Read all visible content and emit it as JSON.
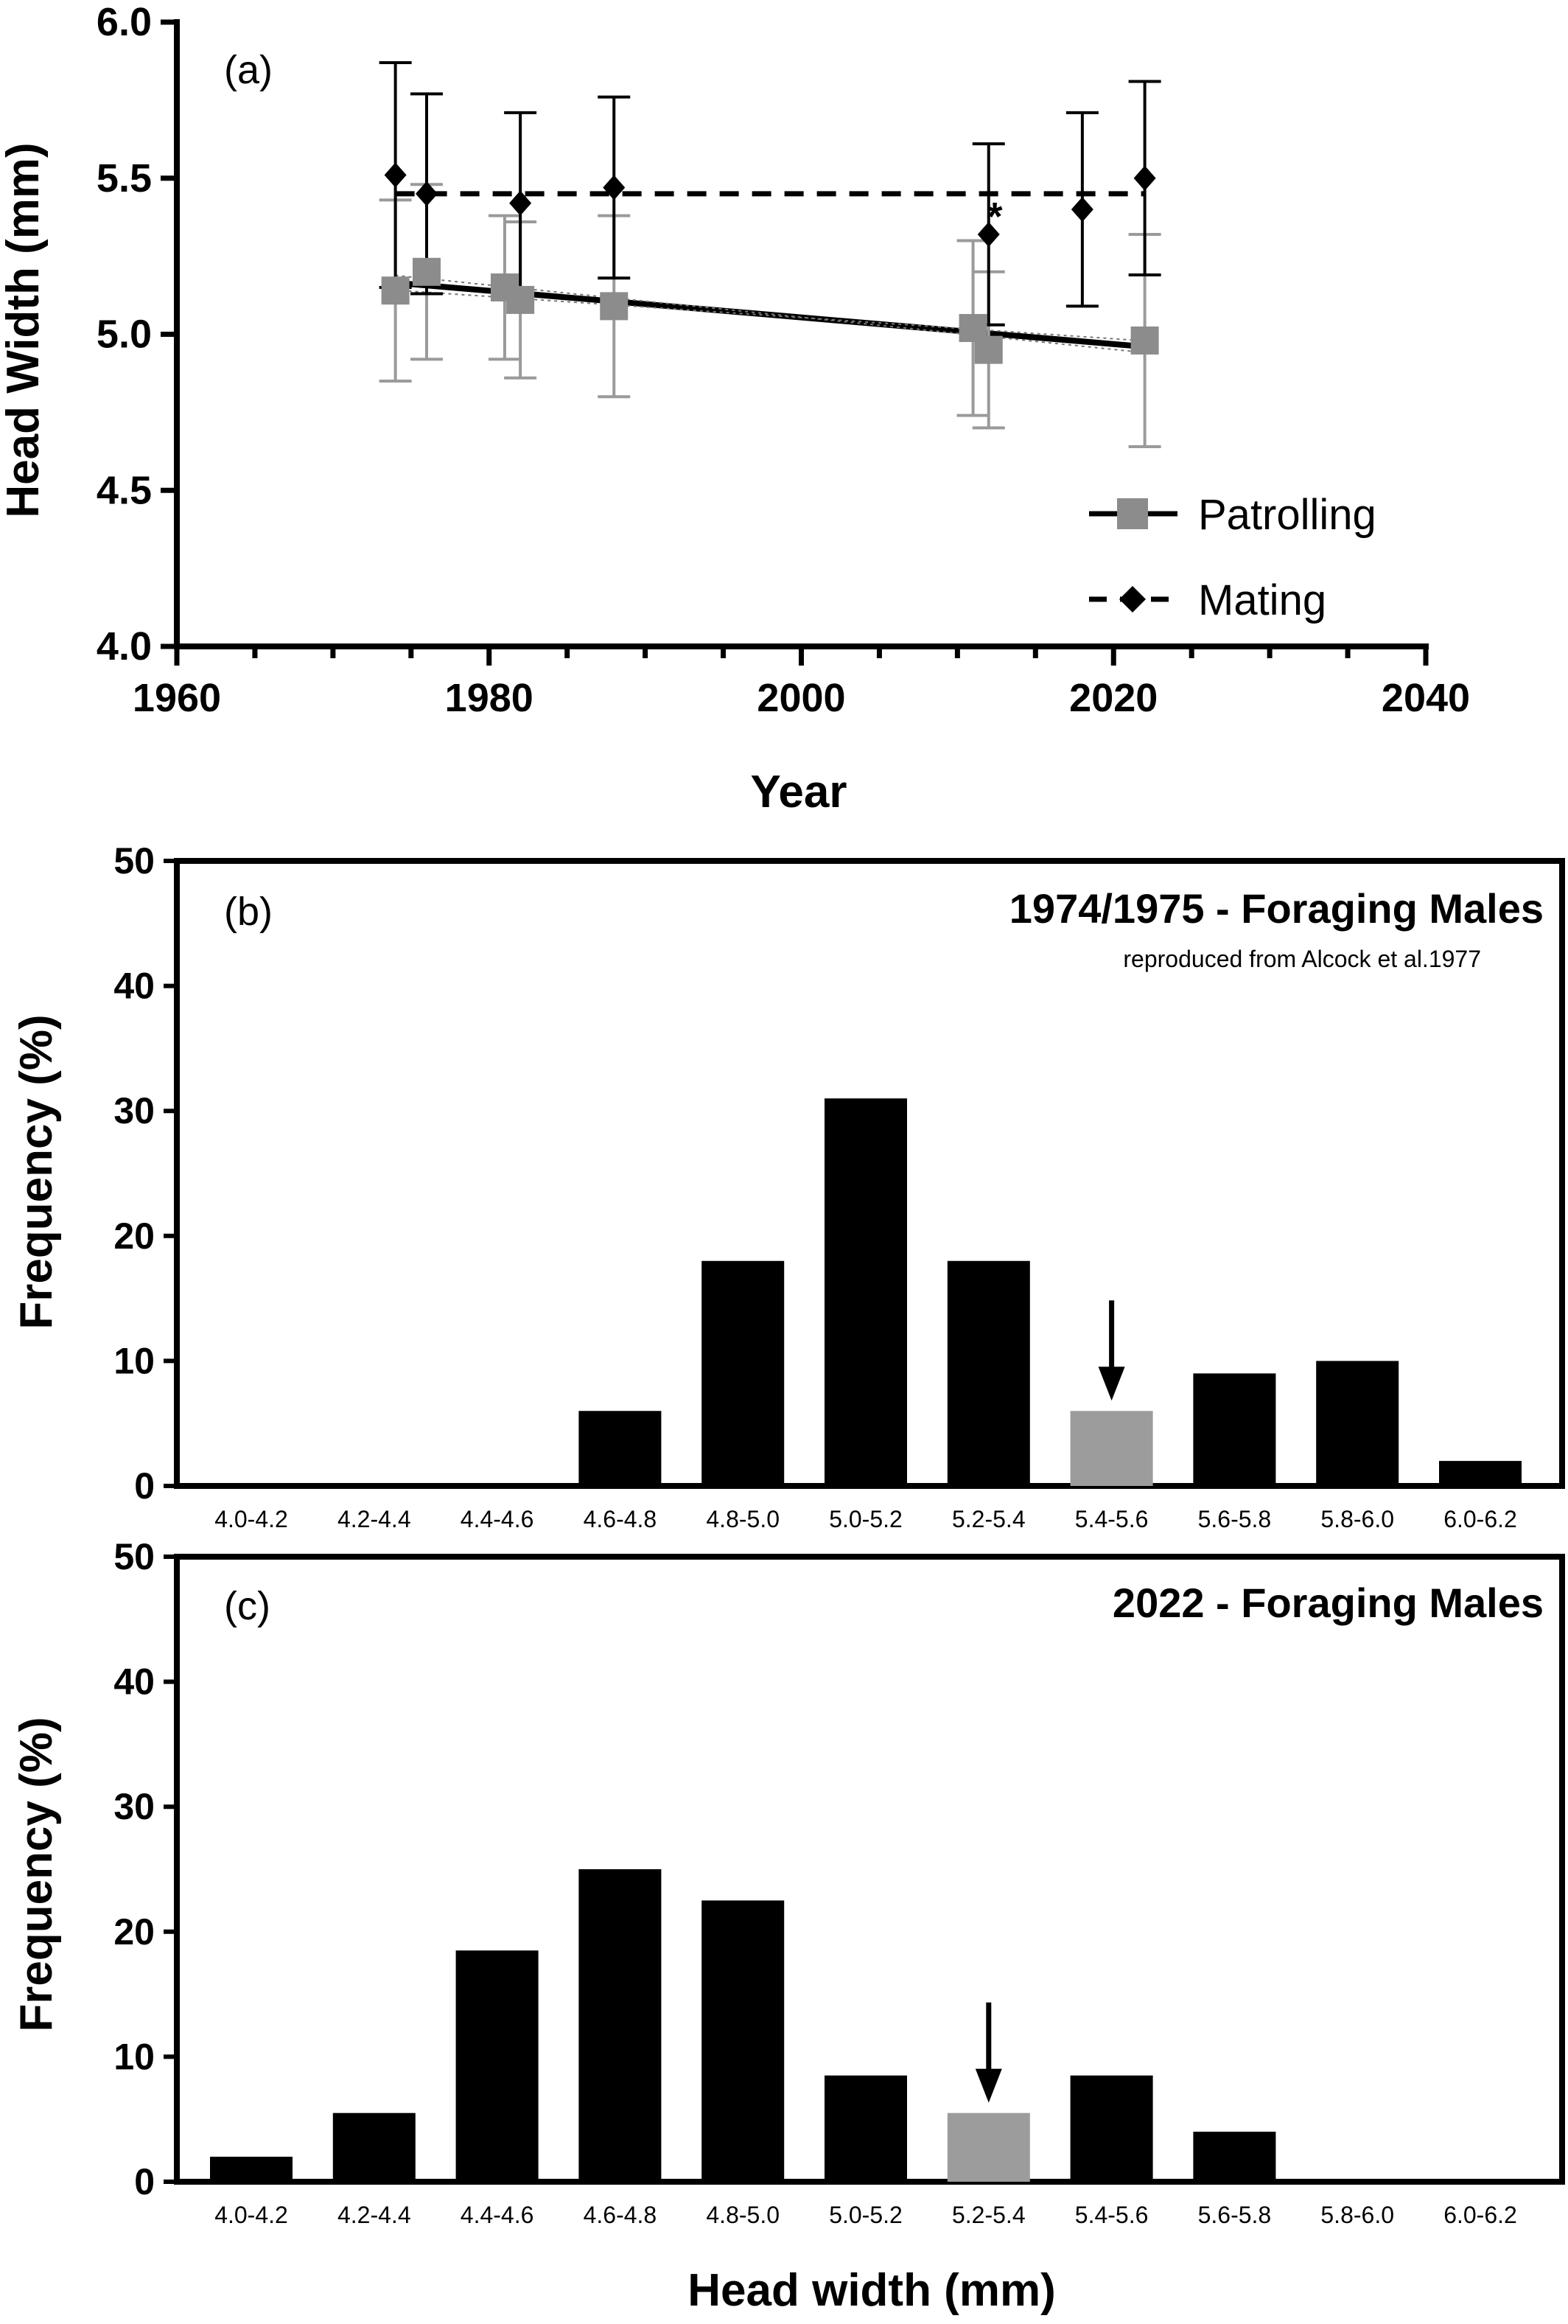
{
  "chart_data": [
    {
      "panel": "(a)",
      "type": "scatter",
      "xlabel": "Year",
      "ylabel": "Head Width (mm)",
      "xlim": [
        1960,
        2040
      ],
      "ylim": [
        4.0,
        6.0
      ],
      "xticks": [
        "1960",
        "1980",
        "2000",
        "2020",
        "2040"
      ],
      "yticks": [
        "4.0",
        "4.5",
        "5.0",
        "5.5",
        "6.0"
      ],
      "legend_position": "bottom-right",
      "series": [
        {
          "name": "Patrolling",
          "color": "#8c8c8c",
          "marker": "square",
          "line": "solid regression",
          "x": [
            1974,
            1976,
            1981,
            1982,
            1988,
            2011,
            2012,
            2022
          ],
          "y": [
            5.14,
            5.2,
            5.15,
            5.11,
            5.09,
            5.02,
            4.95,
            4.98
          ],
          "err": [
            0.29,
            0.28,
            0.23,
            0.25,
            0.29,
            0.28,
            0.25,
            0.34
          ],
          "fit": {
            "x": [
              1974,
              2022
            ],
            "y": [
              5.165,
              4.96
            ]
          }
        },
        {
          "name": "Mating",
          "color": "#000000",
          "marker": "diamond",
          "line": "dashed mean",
          "x": [
            1974,
            1976,
            1982,
            1988,
            2012,
            2018,
            2022
          ],
          "y": [
            5.51,
            5.45,
            5.42,
            5.47,
            5.32,
            5.4,
            5.5
          ],
          "err": [
            0.36,
            0.32,
            0.29,
            0.29,
            0.29,
            0.31,
            0.31
          ],
          "fit": {
            "x": [
              1974,
              2022
            ],
            "y": [
              5.45,
              5.45
            ]
          }
        }
      ],
      "annotations": [
        {
          "text": "*",
          "x": 2013,
          "y": 5.38
        }
      ]
    },
    {
      "panel": "(b)",
      "type": "bar",
      "title": "1974/1975 - Foraging Males",
      "subtitle": "reproduced from Alcock et al.1977",
      "ylabel": "Frequency (%)",
      "ylim": [
        0,
        50
      ],
      "yticks": [
        "0",
        "10",
        "20",
        "30",
        "40",
        "50"
      ],
      "categories": [
        "4.0-4.2",
        "4.2-4.4",
        "4.4-4.6",
        "4.6-4.8",
        "4.8-5.0",
        "5.0-5.2",
        "5.2-5.4",
        "5.4-5.6",
        "5.6-5.8",
        "5.8-6.0",
        "6.0-6.2"
      ],
      "values": [
        0,
        0,
        0,
        6,
        18,
        31,
        18,
        6,
        9,
        10,
        2
      ],
      "highlight_index": 7,
      "bar_color": "#000000",
      "highlight_color": "#9c9c9c"
    },
    {
      "panel": "(c)",
      "type": "bar",
      "title": "2022 - Foraging Males",
      "xlabel": "Head width (mm)",
      "ylabel": "Frequency (%)",
      "ylim": [
        0,
        50
      ],
      "yticks": [
        "0",
        "10",
        "20",
        "30",
        "40",
        "50"
      ],
      "categories": [
        "4.0-4.2",
        "4.2-4.4",
        "4.4-4.6",
        "4.6-4.8",
        "4.8-5.0",
        "5.0-5.2",
        "5.2-5.4",
        "5.4-5.6",
        "5.6-5.8",
        "5.8-6.0",
        "6.0-6.2"
      ],
      "values": [
        2,
        5.5,
        18.5,
        25,
        22.5,
        8.5,
        5.5,
        8.5,
        4,
        0,
        0
      ],
      "highlight_index": 6,
      "bar_color": "#000000",
      "highlight_color": "#9c9c9c"
    }
  ]
}
